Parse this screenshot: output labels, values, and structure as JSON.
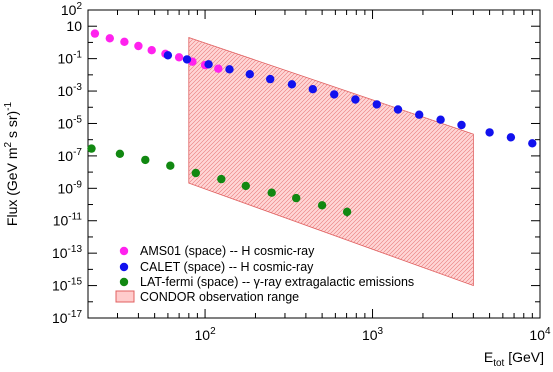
{
  "chart_data": {
    "type": "scatter",
    "xlabel_main": "E",
    "xlabel_sub": "tot",
    "xlabel_unit": " [GeV]",
    "ylabel_prefix": "Flux (GeV m",
    "ylabel_mid": " s sr)",
    "ylabel_exp1": "2",
    "ylabel_exp2": "-1",
    "x_scale": "log",
    "y_scale": "log",
    "xlim": [
      20,
      10000
    ],
    "ylim": [
      1e-17,
      100
    ],
    "x_ticks": [
      {
        "value": 100,
        "base": "10",
        "exp": "2"
      },
      {
        "value": 1000,
        "base": "10",
        "exp": "3"
      },
      {
        "value": 10000,
        "base": "10",
        "exp": "4"
      }
    ],
    "y_ticks": [
      {
        "value": 100,
        "base": "10",
        "exp": "2"
      },
      {
        "value": 10,
        "base": "10",
        "exp": ""
      },
      {
        "value": 0.1,
        "base": "10",
        "exp": "-1"
      },
      {
        "value": 0.001,
        "base": "10",
        "exp": "-3"
      },
      {
        "value": 1e-05,
        "base": "10",
        "exp": "-5"
      },
      {
        "value": 1e-07,
        "base": "10",
        "exp": "-7"
      },
      {
        "value": 1e-09,
        "base": "10",
        "exp": "-9"
      },
      {
        "value": 1e-11,
        "base": "10",
        "exp": "-11"
      },
      {
        "value": 1e-13,
        "base": "10",
        "exp": "-13"
      },
      {
        "value": 1e-15,
        "base": "10",
        "exp": "-15"
      },
      {
        "value": 1e-17,
        "base": "10",
        "exp": "-17"
      }
    ],
    "series": [
      {
        "name": "AMS01 (space) -- H cosmic-ray",
        "color": "#ff22ee",
        "points": [
          {
            "x": 22,
            "y": 3.5
          },
          {
            "x": 27,
            "y": 1.8
          },
          {
            "x": 33,
            "y": 1.1
          },
          {
            "x": 40,
            "y": 0.6
          },
          {
            "x": 48,
            "y": 0.33
          },
          {
            "x": 58,
            "y": 0.2
          },
          {
            "x": 70,
            "y": 0.12
          },
          {
            "x": 84,
            "y": 0.065
          },
          {
            "x": 100,
            "y": 0.04
          },
          {
            "x": 120,
            "y": 0.024
          }
        ]
      },
      {
        "name": "CALET (space) -- H cosmic-ray",
        "color": "#1111ee",
        "points": [
          {
            "x": 60,
            "y": 0.16
          },
          {
            "x": 78,
            "y": 0.09
          },
          {
            "x": 105,
            "y": 0.045
          },
          {
            "x": 140,
            "y": 0.022
          },
          {
            "x": 185,
            "y": 0.011
          },
          {
            "x": 245,
            "y": 0.0055
          },
          {
            "x": 330,
            "y": 0.0026
          },
          {
            "x": 440,
            "y": 0.0013
          },
          {
            "x": 590,
            "y": 0.00062
          },
          {
            "x": 790,
            "y": 0.0003
          },
          {
            "x": 1060,
            "y": 0.00015
          },
          {
            "x": 1420,
            "y": 7.3e-05
          },
          {
            "x": 1900,
            "y": 3.5e-05
          },
          {
            "x": 2550,
            "y": 1.7e-05
          },
          {
            "x": 3400,
            "y": 8e-06
          },
          {
            "x": 5000,
            "y": 2.8e-06
          },
          {
            "x": 6700,
            "y": 1.4e-06
          },
          {
            "x": 9000,
            "y": 6e-07
          }
        ]
      },
      {
        "name": "LAT-fermi (space) -- γ-ray extragalactic emissions",
        "color": "#118811",
        "points": [
          {
            "x": 21,
            "y": 2.8e-07
          },
          {
            "x": 31,
            "y": 1.35e-07
          },
          {
            "x": 44,
            "y": 5.7e-08
          },
          {
            "x": 62,
            "y": 2.5e-08
          },
          {
            "x": 88,
            "y": 8.8e-09
          },
          {
            "x": 125,
            "y": 3.7e-09
          },
          {
            "x": 175,
            "y": 1.4e-09
          },
          {
            "x": 250,
            "y": 5.4e-10
          },
          {
            "x": 350,
            "y": 2.5e-10
          },
          {
            "x": 500,
            "y": 9e-11
          },
          {
            "x": 705,
            "y": 3.5e-11,
            "err_low": 1.8e-11,
            "err_high": 6.5e-11
          }
        ]
      }
    ],
    "band": {
      "name": "CONDOR observation range",
      "fill": "#ffcccc",
      "edge": "#e06060",
      "x": [
        80,
        4000
      ],
      "y_upper": [
        2,
        2.2e-06
      ],
      "y_lower": [
        2.1e-09,
        1e-15
      ]
    }
  }
}
